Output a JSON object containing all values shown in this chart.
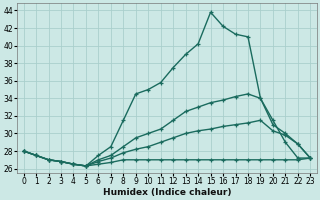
{
  "xlabel": "Humidex (Indice chaleur)",
  "bg_color": "#cce8e5",
  "grid_color": "#aacfcc",
  "line_color": "#1a6b5e",
  "xlim": [
    -0.5,
    23.5
  ],
  "ylim": [
    25.5,
    44.8
  ],
  "yticks": [
    26,
    28,
    30,
    32,
    34,
    36,
    38,
    40,
    42,
    44
  ],
  "xticks": [
    0,
    1,
    2,
    3,
    4,
    5,
    6,
    7,
    8,
    9,
    10,
    11,
    12,
    13,
    14,
    15,
    16,
    17,
    18,
    19,
    20,
    21,
    22,
    23
  ],
  "series": [
    {
      "x": [
        0,
        1,
        2,
        3,
        4,
        5,
        6,
        7,
        8,
        9,
        10,
        11,
        12,
        13,
        14,
        15,
        16,
        17,
        18,
        19,
        20,
        21,
        22,
        23
      ],
      "y": [
        28.0,
        27.5,
        27.0,
        26.8,
        26.5,
        26.3,
        27.5,
        28.5,
        31.5,
        34.5,
        35.0,
        35.8,
        37.5,
        39.0,
        40.2,
        43.8,
        42.2,
        41.3,
        41.0,
        34.0,
        31.5,
        29.0,
        27.2,
        27.2
      ]
    },
    {
      "x": [
        0,
        1,
        2,
        3,
        4,
        5,
        6,
        7,
        8,
        9,
        10,
        11,
        12,
        13,
        14,
        15,
        16,
        17,
        18,
        19,
        20,
        21,
        22,
        23
      ],
      "y": [
        28.0,
        27.5,
        27.0,
        26.8,
        26.5,
        26.3,
        27.0,
        27.5,
        28.5,
        29.5,
        30.0,
        30.5,
        31.5,
        32.5,
        33.0,
        33.5,
        33.8,
        34.2,
        34.5,
        34.0,
        31.0,
        30.0,
        28.8,
        27.2
      ]
    },
    {
      "x": [
        0,
        1,
        2,
        3,
        4,
        5,
        6,
        7,
        8,
        9,
        10,
        11,
        12,
        13,
        14,
        15,
        16,
        17,
        18,
        19,
        20,
        21,
        22,
        23
      ],
      "y": [
        28.0,
        27.5,
        27.0,
        26.8,
        26.5,
        26.3,
        26.8,
        27.2,
        27.8,
        28.2,
        28.5,
        29.0,
        29.5,
        30.0,
        30.3,
        30.5,
        30.8,
        31.0,
        31.2,
        31.5,
        30.3,
        29.8,
        28.8,
        27.2
      ]
    },
    {
      "x": [
        0,
        1,
        2,
        3,
        4,
        5,
        6,
        7,
        8,
        9,
        10,
        11,
        12,
        13,
        14,
        15,
        16,
        17,
        18,
        19,
        20,
        21,
        22,
        23
      ],
      "y": [
        28.0,
        27.5,
        27.0,
        26.8,
        26.5,
        26.3,
        26.5,
        26.7,
        27.0,
        27.0,
        27.0,
        27.0,
        27.0,
        27.0,
        27.0,
        27.0,
        27.0,
        27.0,
        27.0,
        27.0,
        27.0,
        27.0,
        27.0,
        27.2
      ]
    }
  ],
  "marker": "+",
  "marker_size": 3.5,
  "marker_ew": 0.9,
  "line_width": 1.0,
  "tick_fontsize": 5.5,
  "xlabel_fontsize": 6.5
}
